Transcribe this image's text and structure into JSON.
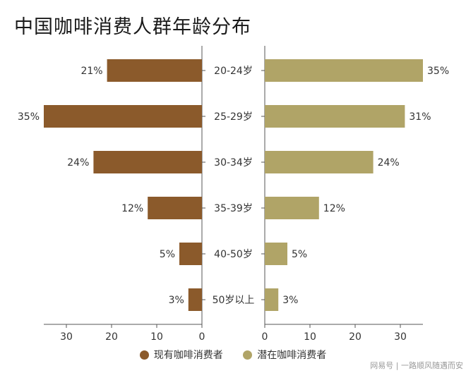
{
  "chart_data": {
    "type": "bar",
    "orientation": "horizontal-butterfly",
    "title": "中国咖啡消费人群年龄分布",
    "categories": [
      "20-24岁",
      "25-29岁",
      "30-34岁",
      "35-39岁",
      "40-50岁",
      "50岁以上"
    ],
    "series": [
      {
        "name": "现有咖啡消费者",
        "values": [
          21,
          35,
          24,
          12,
          5,
          3
        ],
        "color": "#8B5A2B",
        "side": "left"
      },
      {
        "name": "潜在咖啡消费者",
        "values": [
          35,
          31,
          24,
          12,
          5,
          3
        ],
        "color": "#B0A467",
        "side": "right"
      }
    ],
    "value_suffix": "%",
    "xlim": [
      0,
      35
    ],
    "xticks": [
      0,
      10,
      20,
      30
    ],
    "grid": false,
    "legend": "bottom"
  },
  "watermark": "网易号 | 一路顺风随遇而安"
}
